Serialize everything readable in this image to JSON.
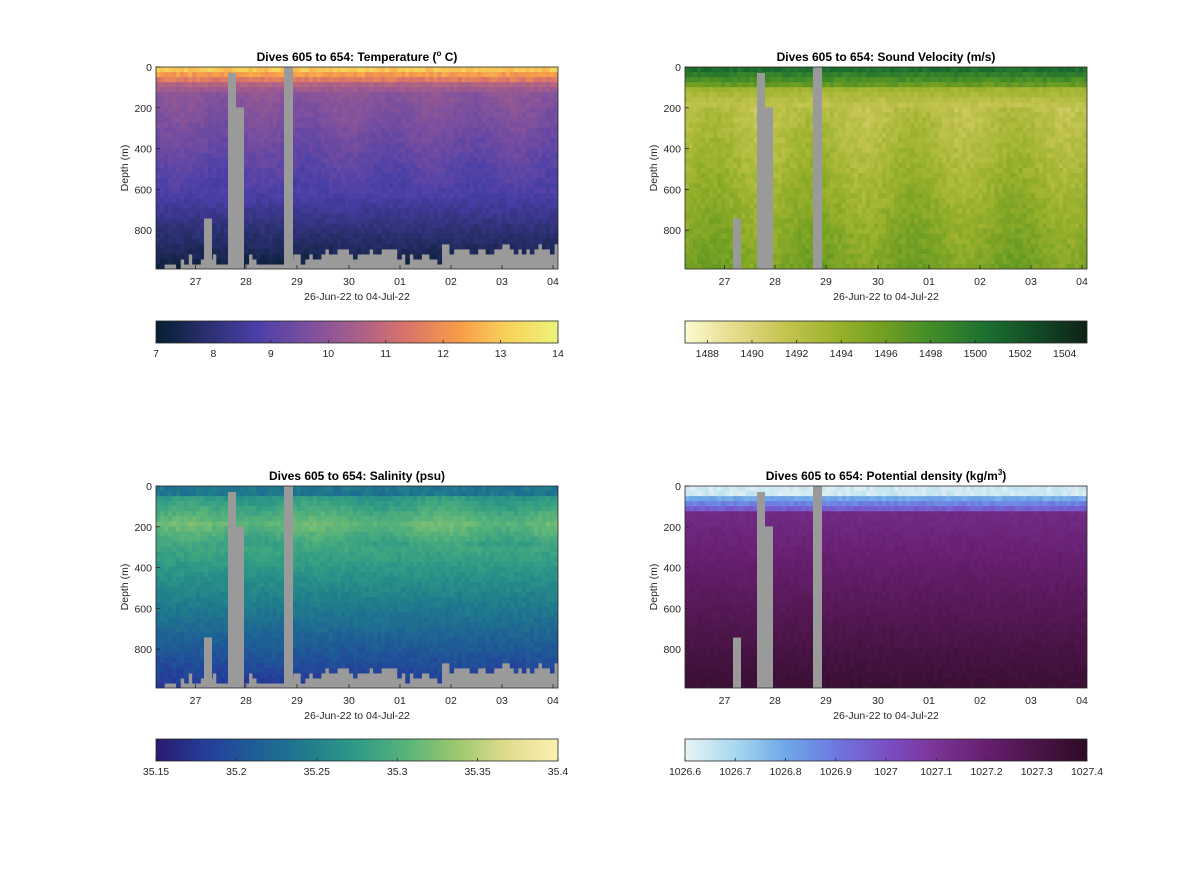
{
  "chart_data": [
    {
      "type": "heatmap",
      "id": "temperature",
      "title_main": "Dives 605 to 654: Temperature (",
      "title_sup": "o",
      "title_end": " C)",
      "ylabel": "Depth (m)",
      "xlabel": "26-Jun-22 to 04-Jul-22",
      "x_ticks": [
        "27",
        "28",
        "29",
        "30",
        "01",
        "02",
        "03",
        "04"
      ],
      "y_ticks": [
        "0",
        "200",
        "400",
        "600",
        "800"
      ],
      "ylim": [
        0,
        990
      ],
      "colorbar": {
        "min": 7,
        "max": 14,
        "ticks": [
          "7",
          "8",
          "9",
          "10",
          "11",
          "12",
          "13",
          "14"
        ]
      },
      "colors": [
        "#071e32",
        "#2a2f6e",
        "#4a3fa8",
        "#7b4f9f",
        "#a85f8a",
        "#d9746a",
        "#f79a4a",
        "#f7d35a",
        "#eef27a"
      ]
    },
    {
      "type": "heatmap",
      "id": "sound-velocity",
      "title_main": "Dives 605 to 654: Sound Velocity (m/s)",
      "title_sup": "",
      "title_end": "",
      "ylabel": "Depth (m)",
      "xlabel": "26-Jun-22 to 04-Jul-22",
      "x_ticks": [
        "27",
        "28",
        "29",
        "30",
        "01",
        "02",
        "03",
        "04"
      ],
      "y_ticks": [
        "0",
        "200",
        "400",
        "600",
        "800"
      ],
      "ylim": [
        0,
        990
      ],
      "colorbar": {
        "min": 1487,
        "max": 1505,
        "ticks": [
          "1488",
          "1490",
          "1492",
          "1494",
          "1496",
          "1498",
          "1500",
          "1502",
          "1504"
        ]
      },
      "colors": [
        "#fcfad0",
        "#e4dc8a",
        "#c3c450",
        "#9cb22d",
        "#6f9e22",
        "#3f8a2a",
        "#1d6f30",
        "#124a26",
        "#0e2216"
      ]
    },
    {
      "type": "heatmap",
      "id": "salinity",
      "title_main": "Dives 605 to 654: Salinity (psu)",
      "title_sup": "",
      "title_end": "",
      "ylabel": "Depth (m)",
      "xlabel": "26-Jun-22 to 04-Jul-22",
      "x_ticks": [
        "27",
        "28",
        "29",
        "30",
        "01",
        "02",
        "03",
        "04"
      ],
      "y_ticks": [
        "0",
        "200",
        "400",
        "600",
        "800"
      ],
      "ylim": [
        0,
        990
      ],
      "colorbar": {
        "min": 35.15,
        "max": 35.4,
        "ticks": [
          "35.15",
          "35.2",
          "35.25",
          "35.3",
          "35.35",
          "35.4"
        ]
      },
      "colors": [
        "#2a1a6e",
        "#253d9a",
        "#1e5f96",
        "#207c8c",
        "#2f9a86",
        "#5ab47a",
        "#9cc86e",
        "#e0dc8e",
        "#fbf0b0"
      ]
    },
    {
      "type": "heatmap",
      "id": "potential-density",
      "title_main": "Dives 605 to 654: Potential density (kg/m",
      "title_sup": "3",
      "title_end": ")",
      "ylabel": "Depth (m)",
      "xlabel": "26-Jun-22 to 04-Jul-22",
      "x_ticks": [
        "27",
        "28",
        "29",
        "30",
        "01",
        "02",
        "03",
        "04"
      ],
      "y_ticks": [
        "0",
        "200",
        "400",
        "600",
        "800"
      ],
      "ylim": [
        0,
        990
      ],
      "colorbar": {
        "min": 1026.6,
        "max": 1027.4,
        "ticks": [
          "1026.6",
          "1026.7",
          "1026.8",
          "1026.9",
          "1027",
          "1027.1",
          "1027.2",
          "1027.3",
          "1027.4"
        ]
      },
      "colors": [
        "#e8f4f4",
        "#a8d8ee",
        "#6fa8e8",
        "#6e78e0",
        "#7a4fc4",
        "#7a3496",
        "#661f6e",
        "#4a1446",
        "#2c0b24"
      ]
    }
  ]
}
